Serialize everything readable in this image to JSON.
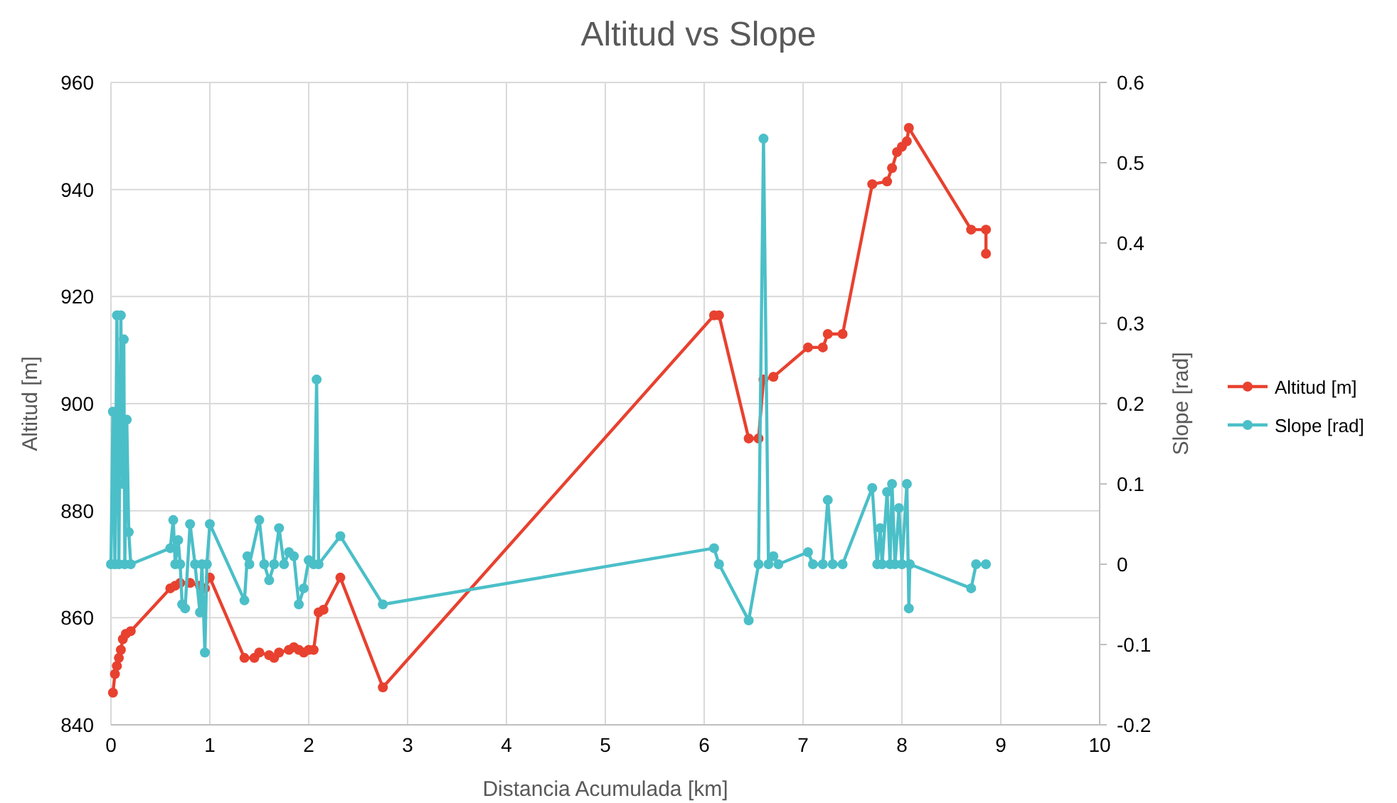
{
  "chart_data": {
    "type": "line",
    "title": "Altitud vs Slope",
    "xlabel": "Distancia Acumulada [km]",
    "ylabel": "Altitud [m]",
    "y2label": "Slope [rad]",
    "xlim": [
      0,
      10
    ],
    "xticks": [
      0,
      1,
      2,
      3,
      4,
      5,
      6,
      7,
      8,
      9,
      10
    ],
    "ylim": [
      840,
      960
    ],
    "yticks": [
      840,
      860,
      880,
      900,
      920,
      940,
      960
    ],
    "y2lim": [
      -0.2,
      0.6
    ],
    "y2ticks": [
      -0.2,
      -0.1,
      0,
      0.1,
      0.2,
      0.3,
      0.4,
      0.5,
      0.6
    ],
    "grid": true,
    "legend": "right",
    "marker": "circle",
    "line_style": "solid",
    "series": [
      {
        "name": "Altitud [m]",
        "color": "#e8412f",
        "x": [
          0.02,
          0.04,
          0.06,
          0.08,
          0.1,
          0.12,
          0.15,
          0.2,
          0.6,
          0.65,
          0.7,
          0.8,
          0.9,
          0.95,
          1.0,
          1.35,
          1.45,
          1.5,
          1.6,
          1.65,
          1.7,
          1.8,
          1.85,
          1.9,
          1.95,
          2.0,
          2.05,
          2.1,
          2.15,
          2.32,
          2.75,
          6.1,
          6.15,
          6.45,
          6.55,
          6.6,
          6.7,
          7.05,
          7.2,
          7.25,
          7.4,
          7.7,
          7.85,
          7.9,
          7.95,
          8.0,
          8.05,
          8.07,
          8.7,
          8.85,
          8.85
        ],
        "values": [
          846,
          849.5,
          851,
          852.5,
          854,
          856,
          857,
          857.5,
          865.5,
          866,
          866.5,
          866.5,
          866,
          865.5,
          867.5,
          852.5,
          852.5,
          853.5,
          853,
          852.5,
          853.5,
          854,
          854.5,
          854,
          853.5,
          854,
          854,
          861,
          861.5,
          867.5,
          847,
          916.5,
          916.5,
          893.5,
          893.5,
          904.5,
          905,
          910.5,
          910.5,
          913,
          913,
          941,
          941.5,
          944,
          947,
          948,
          949,
          951.5,
          932.5,
          932.5,
          928
        ]
      },
      {
        "name": "Slope [rad]",
        "color": "#4bbfc8",
        "axis": "y2",
        "x": [
          0,
          0.02,
          0.04,
          0.06,
          0.08,
          0.1,
          0.12,
          0.13,
          0.14,
          0.16,
          0.18,
          0.2,
          0.6,
          0.63,
          0.65,
          0.68,
          0.7,
          0.72,
          0.75,
          0.8,
          0.85,
          0.9,
          0.92,
          0.95,
          0.97,
          1.0,
          1.35,
          1.38,
          1.4,
          1.5,
          1.55,
          1.6,
          1.65,
          1.7,
          1.75,
          1.8,
          1.85,
          1.9,
          1.95,
          2.0,
          2.05,
          2.08,
          2.1,
          2.32,
          2.75,
          6.1,
          6.15,
          6.45,
          6.55,
          6.6,
          6.65,
          6.7,
          6.75,
          7.05,
          7.1,
          7.2,
          7.25,
          7.3,
          7.4,
          7.7,
          7.75,
          7.78,
          7.8,
          7.85,
          7.88,
          7.9,
          7.93,
          7.97,
          8.0,
          8.05,
          8.07,
          8.08,
          8.7,
          8.75,
          8.85
        ],
        "values": [
          0,
          0.19,
          0,
          0.31,
          0,
          0.31,
          0.1,
          0.28,
          0,
          0.18,
          0.04,
          0,
          0.02,
          0.055,
          0,
          0.03,
          0,
          -0.05,
          -0.055,
          0.05,
          0,
          -0.06,
          0,
          -0.11,
          0,
          0.05,
          -0.045,
          0.01,
          0,
          0.055,
          0,
          -0.02,
          0,
          0.045,
          0,
          0.015,
          0.01,
          -0.05,
          -0.03,
          0.005,
          0,
          0.23,
          0,
          0.035,
          -0.05,
          0.02,
          0,
          -0.07,
          0,
          0.53,
          0,
          0.01,
          0,
          0.015,
          0,
          0,
          0.08,
          0,
          0,
          0.095,
          0,
          0.045,
          0,
          0.09,
          0,
          0.1,
          0,
          0.07,
          0,
          0.1,
          -0.055,
          0,
          -0.03,
          0,
          0
        ]
      }
    ]
  }
}
